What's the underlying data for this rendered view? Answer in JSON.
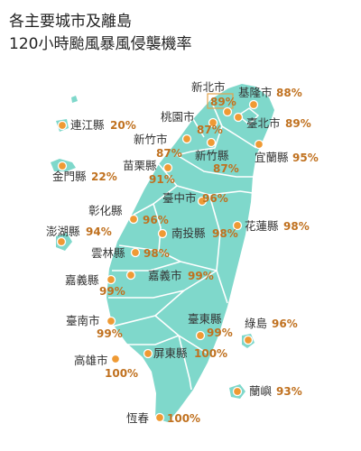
{
  "title": {
    "line1": "各主要城市及離島",
    "line2": "120小時颱風暴風侵襲機率"
  },
  "colors": {
    "land": "#7fd8cb",
    "dot": "#ef9a34",
    "percent_text": "#c0711f",
    "label_text": "#333333",
    "highlight_box": "#e2a44c"
  },
  "places": [
    {
      "id": "keelung",
      "name": "基隆市",
      "percent": "88%"
    },
    {
      "id": "newtaipei",
      "name": "新北市",
      "percent": "89%"
    },
    {
      "id": "taipei",
      "name": "臺北市",
      "percent": "89%"
    },
    {
      "id": "taoyuan",
      "name": "桃園市",
      "percent": "87%"
    },
    {
      "id": "hsinchucity",
      "name": "新竹市",
      "percent": "87%"
    },
    {
      "id": "hsinchucounty",
      "name": "新竹縣",
      "percent": "87%"
    },
    {
      "id": "yilan",
      "name": "宜蘭縣",
      "percent": "95%"
    },
    {
      "id": "miaoli",
      "name": "苗栗縣",
      "percent": "91%"
    },
    {
      "id": "taichung",
      "name": "臺中市",
      "percent": "96%"
    },
    {
      "id": "changhua",
      "name": "彰化縣",
      "percent": "96%"
    },
    {
      "id": "nantou",
      "name": "南投縣",
      "percent": "98%"
    },
    {
      "id": "hualien",
      "name": "花蓮縣",
      "percent": "98%"
    },
    {
      "id": "yunlin",
      "name": "雲林縣",
      "percent": "98%"
    },
    {
      "id": "chiayicounty",
      "name": "嘉義縣",
      "percent": "99%"
    },
    {
      "id": "chiayicity",
      "name": "嘉義市",
      "percent": "99%"
    },
    {
      "id": "tainan",
      "name": "臺南市",
      "percent": "99%"
    },
    {
      "id": "taitung",
      "name": "臺東縣",
      "percent": "99%"
    },
    {
      "id": "kaohsiung",
      "name": "高雄市",
      "percent": "100%"
    },
    {
      "id": "pingtung",
      "name": "屏東縣",
      "percent": "100%"
    },
    {
      "id": "hengchun",
      "name": "恆春",
      "percent": "100%"
    },
    {
      "id": "lienchiang",
      "name": "連江縣",
      "percent": "20%"
    },
    {
      "id": "kinmen",
      "name": "金門縣",
      "percent": "22%"
    },
    {
      "id": "penghu",
      "name": "澎湖縣",
      "percent": "94%"
    },
    {
      "id": "greenisland",
      "name": "綠島",
      "percent": "96%"
    },
    {
      "id": "orchid",
      "name": "蘭嶼",
      "percent": "93%"
    }
  ]
}
